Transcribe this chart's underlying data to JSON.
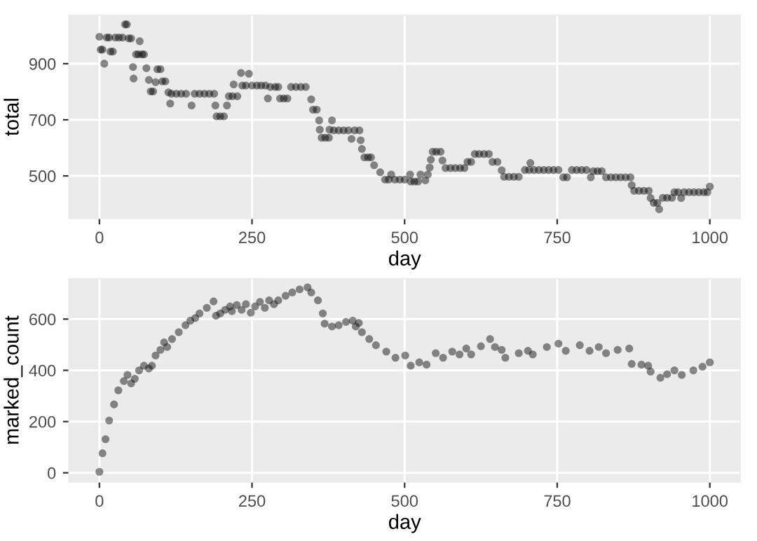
{
  "chart_data": [
    {
      "type": "scatter",
      "xlabel": "day",
      "ylabel": "total",
      "xlim": [
        -50,
        1050
      ],
      "ylim": [
        348,
        1073
      ],
      "xticks": [
        0,
        250,
        500,
        750,
        1000
      ],
      "yticks": [
        500,
        700,
        900
      ],
      "grid": true,
      "marker": "circle",
      "series": [
        {
          "color": "#000000",
          "x": [
            0,
            2,
            5,
            8,
            12,
            16,
            18,
            22,
            26,
            32,
            38,
            42,
            45,
            48,
            52,
            55,
            56,
            60,
            64,
            66,
            70,
            73,
            77,
            81,
            84,
            88,
            92,
            95,
            100,
            103,
            108,
            113,
            116,
            118,
            126,
            134,
            142,
            151,
            156,
            164,
            172,
            180,
            188,
            190,
            192,
            198,
            204,
            209,
            212,
            218,
            220,
            226,
            232,
            234,
            240,
            245,
            250,
            258,
            265,
            272,
            276,
            280,
            288,
            293,
            296,
            302,
            308,
            314,
            322,
            330,
            338,
            347,
            350,
            356,
            360,
            361,
            364,
            370,
            376,
            377,
            381,
            384,
            392,
            400,
            408,
            413,
            418,
            426,
            428,
            430,
            434,
            440,
            445,
            450,
            460,
            468,
            474,
            478,
            484,
            492,
            500,
            509,
            510,
            516,
            522,
            526,
            534,
            538,
            541,
            543,
            546,
            552,
            559,
            562,
            567,
            575,
            583,
            591,
            598,
            603,
            609,
            615,
            622,
            630,
            638,
            644,
            652,
            659,
            663,
            671,
            679,
            687,
            697,
            704,
            706,
            712,
            720,
            728,
            736,
            744,
            752,
            760,
            766,
            774,
            782,
            790,
            798,
            805,
            809,
            816,
            823,
            830,
            838,
            846,
            854,
            862,
            870,
            872,
            876,
            884,
            892,
            900,
            903,
            908,
            914,
            917,
            923,
            930,
            938,
            942,
            948,
            953,
            958,
            966,
            974,
            982,
            990,
            996,
            1000
          ],
          "values": [
            996,
            950,
            950,
            900,
            993,
            993,
            943,
            943,
            993,
            993,
            993,
            1040,
            1040,
            990,
            990,
            888,
            847,
            933,
            933,
            980,
            933,
            933,
            884,
            842,
            801,
            801,
            834,
            880,
            880,
            837,
            837,
            798,
            758,
            793,
            793,
            793,
            793,
            751,
            793,
            793,
            793,
            793,
            793,
            751,
            712,
            712,
            712,
            751,
            784,
            784,
            826,
            784,
            867,
            822,
            822,
            864,
            822,
            822,
            822,
            822,
            776,
            817,
            817,
            817,
            776,
            776,
            776,
            817,
            817,
            817,
            817,
            773,
            736,
            736,
            698,
            665,
            636,
            636,
            636,
            665,
            698,
            662,
            662,
            662,
            662,
            632,
            662,
            662,
            627,
            596,
            566,
            566,
            566,
            538,
            513,
            487,
            487,
            505,
            487,
            487,
            487,
            505,
            480,
            480,
            480,
            505,
            484,
            505,
            530,
            558,
            586,
            586,
            586,
            555,
            528,
            528,
            528,
            528,
            528,
            550,
            550,
            578,
            578,
            578,
            578,
            550,
            550,
            520,
            497,
            497,
            497,
            497,
            521,
            521,
            546,
            521,
            521,
            521,
            521,
            521,
            521,
            495,
            495,
            521,
            521,
            521,
            521,
            495,
            517,
            517,
            517,
            495,
            495,
            495,
            495,
            495,
            495,
            467,
            447,
            447,
            447,
            447,
            421,
            404,
            404,
            381,
            422,
            422,
            422,
            442,
            442,
            421,
            442,
            442,
            442,
            442,
            442,
            442,
            462
          ]
        }
      ]
    },
    {
      "type": "scatter",
      "xlabel": "day",
      "ylabel": "marked_count",
      "xlim": [
        -50,
        1050
      ],
      "ylim": [
        -36,
        758
      ],
      "xticks": [
        0,
        250,
        500,
        750,
        1000
      ],
      "yticks": [
        0,
        200,
        400,
        600
      ],
      "grid": true,
      "marker": "circle",
      "series": [
        {
          "color": "#000000",
          "x": [
            0,
            5,
            10,
            16,
            24,
            31,
            40,
            46,
            52,
            58,
            65,
            73,
            81,
            86,
            92,
            100,
            106,
            111,
            119,
            130,
            141,
            149,
            157,
            164,
            176,
            187,
            191,
            198,
            206,
            214,
            217,
            225,
            233,
            240,
            248,
            255,
            263,
            271,
            278,
            286,
            293,
            305,
            316,
            328,
            341,
            347,
            358,
            366,
            369,
            381,
            392,
            404,
            415,
            420,
            425,
            430,
            442,
            453,
            470,
            485,
            501,
            510,
            524,
            536,
            551,
            563,
            578,
            590,
            601,
            609,
            625,
            640,
            648,
            659,
            665,
            687,
            702,
            710,
            733,
            752,
            764,
            787,
            803,
            818,
            830,
            849,
            868,
            872,
            888,
            899,
            903,
            919,
            930,
            942,
            954,
            973,
            988,
            1000
          ],
          "values": [
            4,
            76,
            131,
            204,
            267,
            322,
            358,
            382,
            349,
            367,
            400,
            418,
            407,
            418,
            458,
            480,
            509,
            491,
            522,
            549,
            576,
            594,
            604,
            622,
            644,
            669,
            613,
            622,
            636,
            649,
            631,
            655,
            636,
            658,
            625,
            649,
            667,
            644,
            673,
            658,
            673,
            691,
            704,
            716,
            724,
            704,
            673,
            622,
            582,
            571,
            576,
            589,
            594,
            571,
            585,
            549,
            522,
            498,
            473,
            449,
            458,
            418,
            431,
            422,
            467,
            449,
            473,
            462,
            485,
            462,
            494,
            522,
            491,
            480,
            449,
            467,
            476,
            462,
            491,
            504,
            476,
            498,
            476,
            491,
            467,
            480,
            485,
            425,
            422,
            418,
            395,
            371,
            385,
            400,
            382,
            400,
            414,
            431
          ]
        }
      ]
    }
  ]
}
